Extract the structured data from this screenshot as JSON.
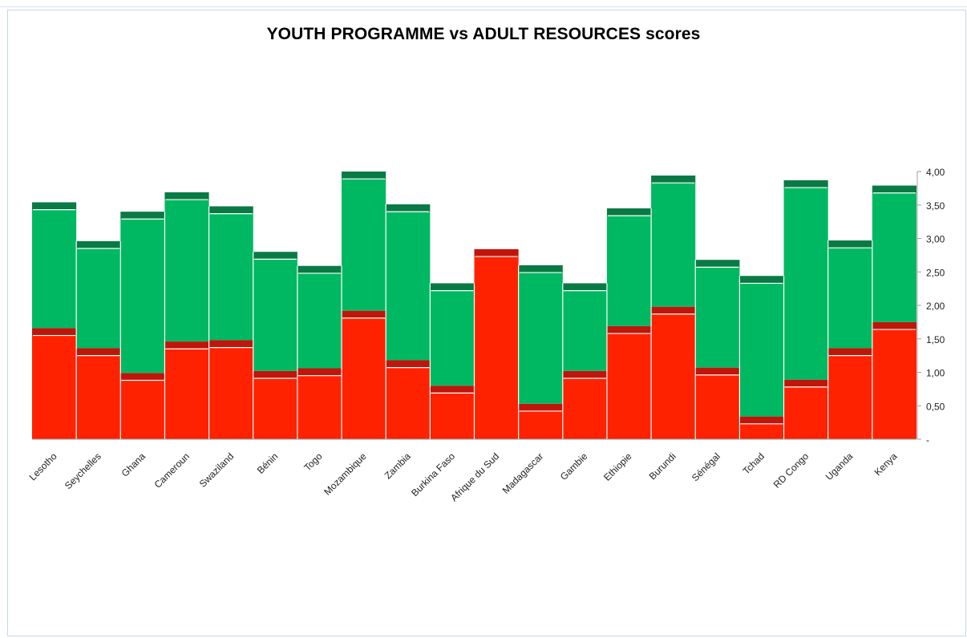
{
  "chart_data": {
    "type": "bar",
    "title": "YOUTH PROGRAMME vs ADULT RESOURCES scores",
    "xlabel": "",
    "ylabel": "",
    "ylim": [
      0,
      4.0
    ],
    "y_ticks": [
      "-",
      "0,50",
      "1,00",
      "1,50",
      "2,00",
      "2,50",
      "3,00",
      "3,50",
      "4,00"
    ],
    "categories": [
      "Lesotho",
      "Seychelles",
      "Ghana",
      "Cameroun",
      "Swaziland",
      "Bénin",
      "Togo",
      "Mozambique",
      "Zambia",
      "Burkina Faso",
      "Afrique du Sud",
      "Madagascar",
      "Gambie",
      "Ethiopie",
      "Burundi",
      "Sénégal",
      "Tchad",
      "RD Congo",
      "Uganda",
      "Kenya"
    ],
    "series": [
      {
        "color": "#ff2200",
        "values": [
          1.55,
          1.25,
          0.88,
          1.35,
          1.37,
          0.91,
          0.95,
          1.81,
          1.07,
          0.69,
          2.73,
          0.42,
          0.91,
          1.58,
          1.87,
          0.96,
          0.23,
          0.78,
          1.25,
          1.64
        ]
      },
      {
        "color": "#c0150a",
        "values": [
          0.11,
          0.11,
          0.11,
          0.11,
          0.11,
          0.11,
          0.11,
          0.11,
          0.11,
          0.11,
          0.11,
          0.11,
          0.11,
          0.11,
          0.11,
          0.11,
          0.11,
          0.11,
          0.11,
          0.11
        ]
      },
      {
        "color": "#00b862",
        "values": [
          1.77,
          1.49,
          2.3,
          2.12,
          1.89,
          1.67,
          1.42,
          1.97,
          2.22,
          1.42,
          0.0,
          1.96,
          1.2,
          1.65,
          1.85,
          1.5,
          1.99,
          2.87,
          1.5,
          1.93
        ]
      },
      {
        "color": "#0a7a45",
        "values": [
          0.11,
          0.11,
          0.11,
          0.11,
          0.11,
          0.11,
          0.11,
          0.11,
          0.11,
          0.11,
          0.0,
          0.11,
          0.11,
          0.11,
          0.11,
          0.11,
          0.11,
          0.11,
          0.11,
          0.11
        ]
      }
    ],
    "grid": false,
    "legend": "none"
  }
}
